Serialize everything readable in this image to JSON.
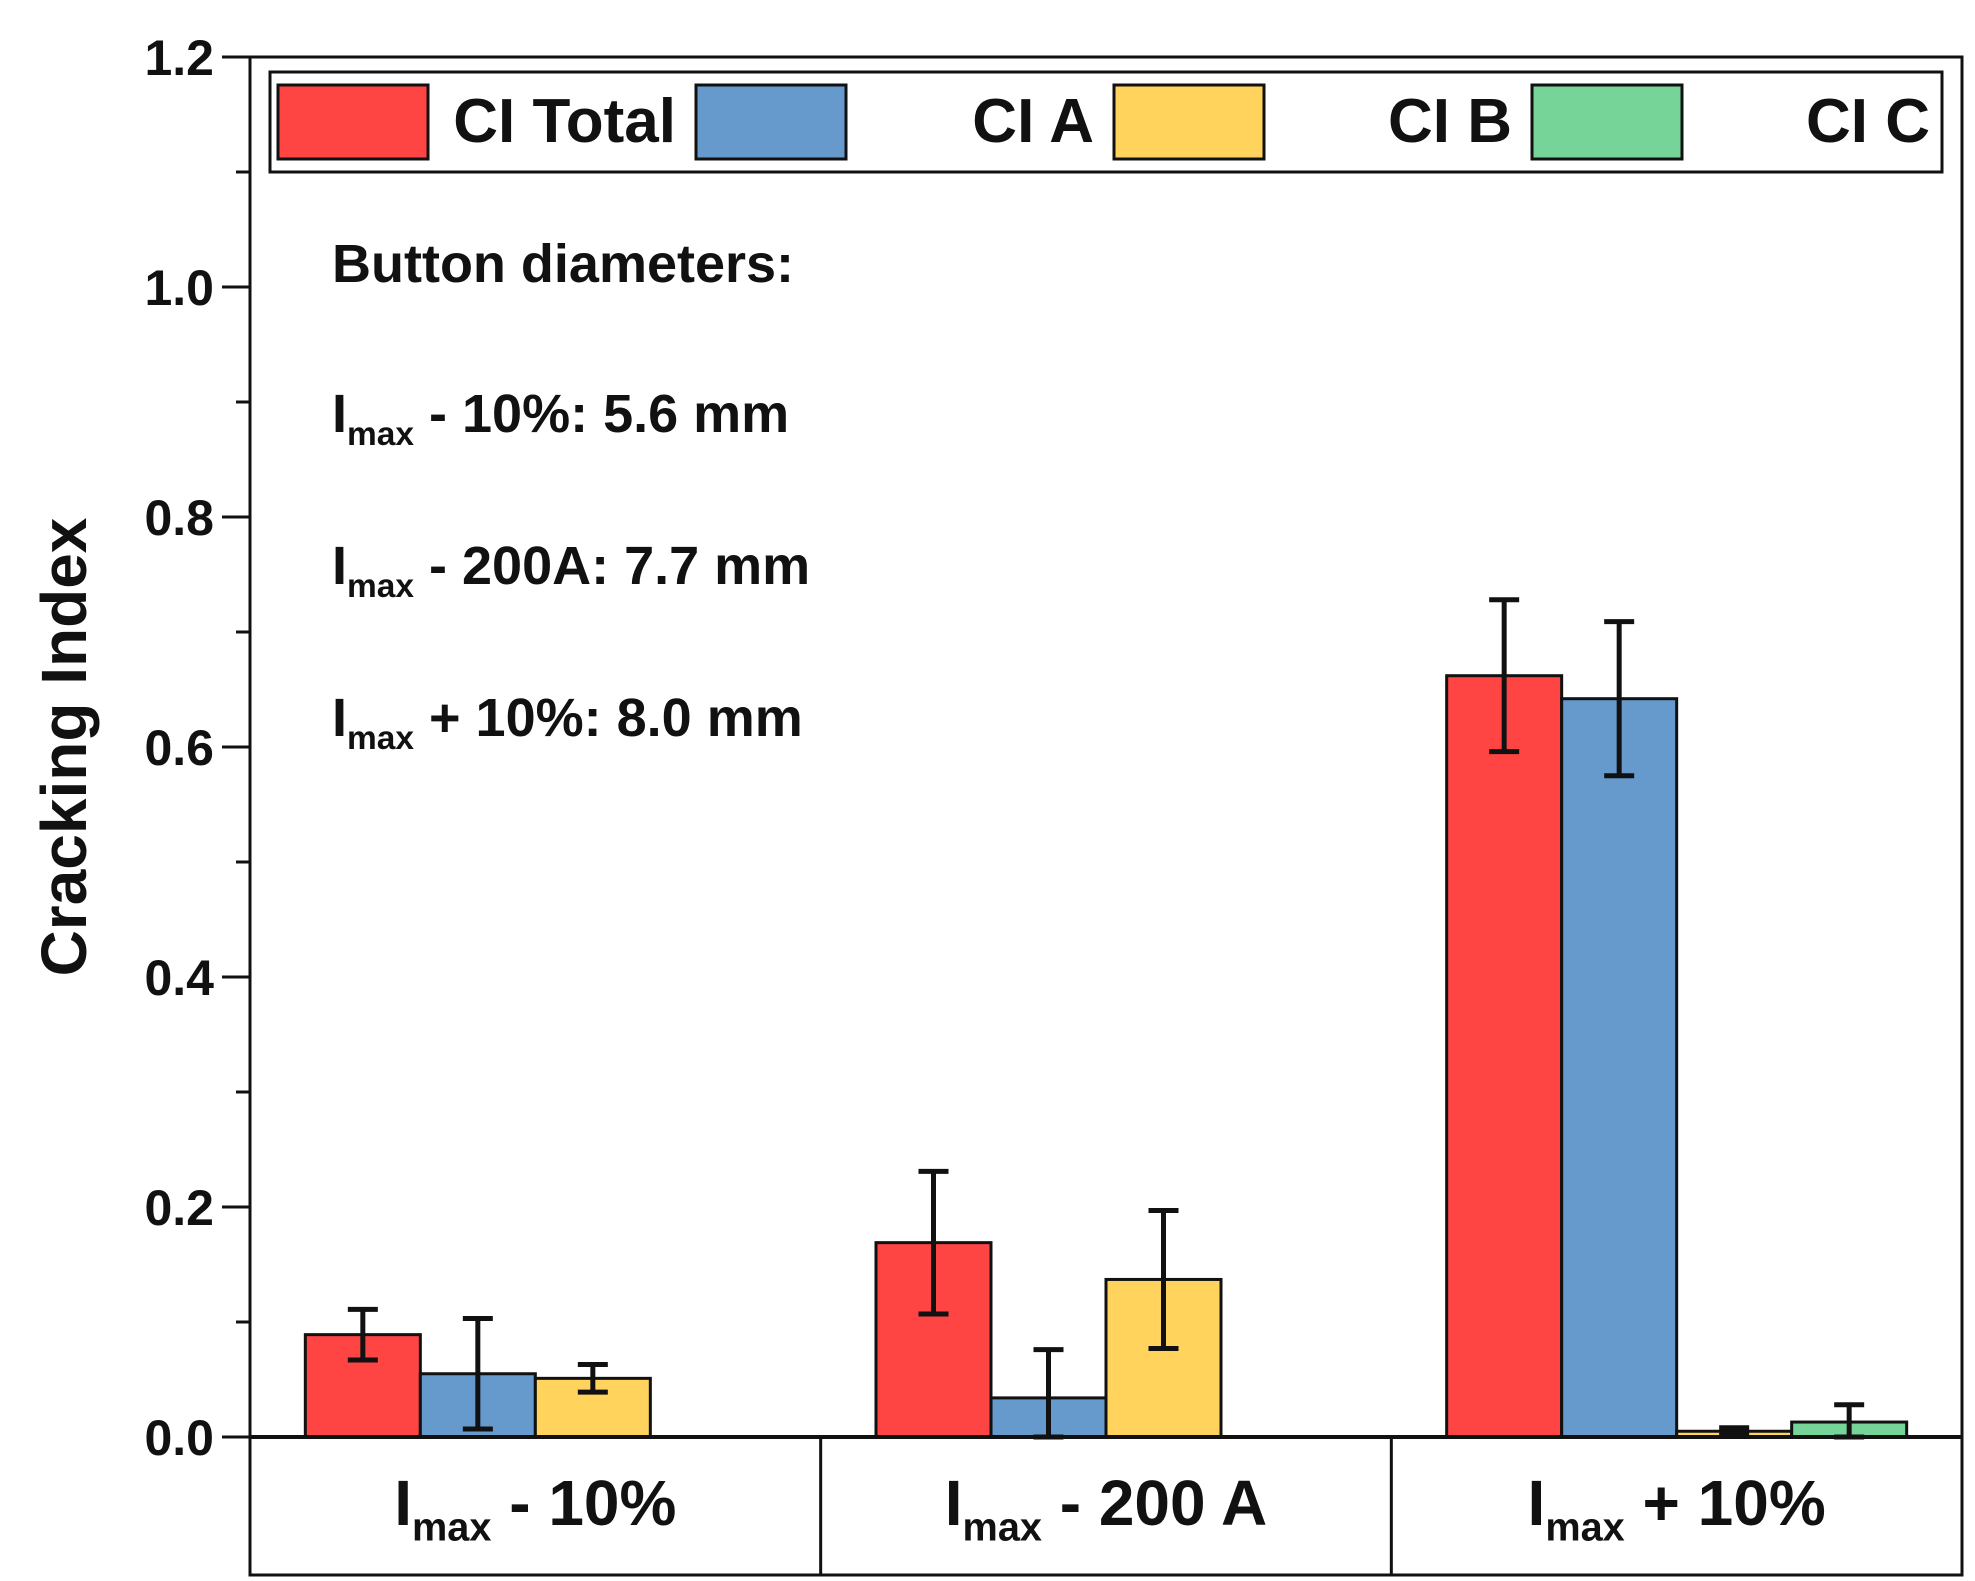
{
  "chart_data": {
    "type": "bar",
    "ylabel": "Cracking Index",
    "ylim": [
      0,
      1.2
    ],
    "yticks": [
      "0.0",
      "0.2",
      "0.4",
      "0.6",
      "0.8",
      "1.0",
      "1.2"
    ],
    "categories": [
      {
        "main": "I",
        "sub": "max",
        "rest": " - 10%"
      },
      {
        "main": "I",
        "sub": "max",
        "rest": " - 200 A"
      },
      {
        "main": "I",
        "sub": "max",
        "rest": " + 10%"
      }
    ],
    "series": [
      {
        "name": "CI Total",
        "color": "#ff4444",
        "values": [
          0.089,
          0.169,
          0.662
        ],
        "errors": [
          0.022,
          0.062,
          0.066
        ]
      },
      {
        "name": "CI A",
        "color": "#6699cc",
        "values": [
          0.055,
          0.034,
          0.642
        ],
        "errors": [
          0.048,
          0.042,
          0.067
        ]
      },
      {
        "name": "CI B",
        "color": "#ffd35c",
        "values": [
          0.051,
          0.137,
          0.005
        ],
        "errors": [
          0.012,
          0.06,
          0.003
        ]
      },
      {
        "name": "CI C",
        "color": "#77d499",
        "values": [
          0.0,
          0.0,
          0.013
        ],
        "errors": [
          0.0,
          0.0,
          0.015
        ]
      }
    ],
    "annotation": {
      "title": "Button diameters:",
      "lines": [
        {
          "main": "I",
          "sub": "max",
          "rest": " - 10%: 5.6 mm"
        },
        {
          "main": "I",
          "sub": "max",
          "rest": " - 200A: 7.7 mm"
        },
        {
          "main": "I",
          "sub": "max",
          "rest": " + 10%: 8.0 mm"
        }
      ]
    }
  }
}
